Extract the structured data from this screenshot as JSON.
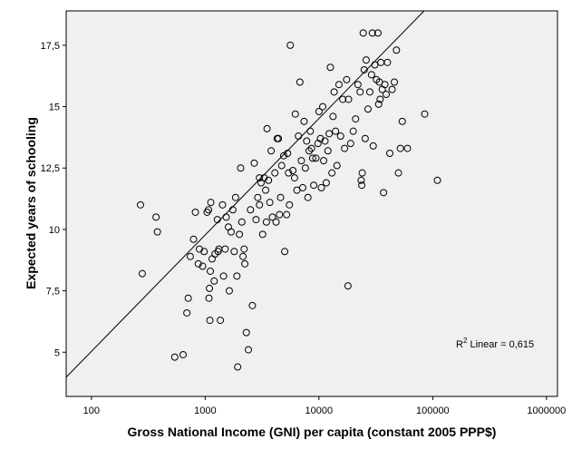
{
  "chart_data": {
    "type": "scatter",
    "xlabel": "Gross National Income (GNI) per capita (constant 2005 PPP$)",
    "ylabel": "Expected years of schooling",
    "x_scale": "log",
    "xlim": [
      60,
      1250000
    ],
    "ylim": [
      3.2,
      18.9
    ],
    "x_ticks": [
      100,
      1000,
      10000,
      100000,
      1000000
    ],
    "x_tick_labels": [
      "100",
      "1000",
      "10000",
      "100000",
      "1000000"
    ],
    "y_ticks": [
      5,
      7.5,
      10,
      12.5,
      15,
      17.5
    ],
    "y_tick_labels": [
      "5",
      "7,5",
      "10",
      "12,5",
      "15",
      "17,5"
    ],
    "grid": false,
    "background": "#f0f0f0",
    "fit_line": {
      "label_prefix": "R",
      "label_sup": "2",
      "label_suffix": " Linear = 0,615",
      "points": [
        [
          60,
          3.98
        ],
        [
          84000,
          18.9
        ]
      ]
    },
    "points": [
      [
        270,
        11.0
      ],
      [
        280,
        8.2
      ],
      [
        370,
        10.5
      ],
      [
        380,
        9.9
      ],
      [
        540,
        4.8
      ],
      [
        640,
        4.9
      ],
      [
        690,
        6.6
      ],
      [
        710,
        7.2
      ],
      [
        740,
        8.9
      ],
      [
        790,
        9.6
      ],
      [
        820,
        10.7
      ],
      [
        870,
        8.6
      ],
      [
        890,
        9.2
      ],
      [
        950,
        8.5
      ],
      [
        980,
        9.1
      ],
      [
        1040,
        10.7
      ],
      [
        1070,
        10.8
      ],
      [
        1080,
        7.2
      ],
      [
        1090,
        7.6
      ],
      [
        1100,
        6.3
      ],
      [
        1110,
        8.3
      ],
      [
        1120,
        11.1
      ],
      [
        1150,
        8.8
      ],
      [
        1200,
        7.9
      ],
      [
        1220,
        9.0
      ],
      [
        1280,
        10.4
      ],
      [
        1300,
        9.1
      ],
      [
        1320,
        9.2
      ],
      [
        1360,
        6.3
      ],
      [
        1420,
        11.0
      ],
      [
        1450,
        8.1
      ],
      [
        1500,
        9.2
      ],
      [
        1530,
        10.5
      ],
      [
        1600,
        10.1
      ],
      [
        1630,
        7.5
      ],
      [
        1690,
        9.9
      ],
      [
        1750,
        10.8
      ],
      [
        1800,
        9.1
      ],
      [
        1850,
        11.3
      ],
      [
        1900,
        8.1
      ],
      [
        1930,
        4.4
      ],
      [
        2000,
        9.8
      ],
      [
        2050,
        12.5
      ],
      [
        2100,
        10.3
      ],
      [
        2150,
        8.9
      ],
      [
        2200,
        9.2
      ],
      [
        2230,
        8.6
      ],
      [
        2300,
        5.8
      ],
      [
        2400,
        5.1
      ],
      [
        2500,
        10.8
      ],
      [
        2600,
        6.9
      ],
      [
        2700,
        12.7
      ],
      [
        2800,
        10.4
      ],
      [
        2900,
        11.3
      ],
      [
        3000,
        12.1
      ],
      [
        3000,
        11.0
      ],
      [
        3100,
        11.9
      ],
      [
        3200,
        9.8
      ],
      [
        3300,
        12.1
      ],
      [
        3400,
        11.6
      ],
      [
        3450,
        10.3
      ],
      [
        3500,
        14.1
      ],
      [
        3600,
        12.0
      ],
      [
        3700,
        11.1
      ],
      [
        3800,
        13.2
      ],
      [
        3900,
        10.5
      ],
      [
        4100,
        12.3
      ],
      [
        4200,
        10.3
      ],
      [
        4300,
        13.7
      ],
      [
        4400,
        13.7
      ],
      [
        4500,
        10.6
      ],
      [
        4600,
        11.3
      ],
      [
        4700,
        12.6
      ],
      [
        4900,
        13.0
      ],
      [
        5000,
        9.1
      ],
      [
        5200,
        10.6
      ],
      [
        5300,
        13.1
      ],
      [
        5400,
        12.3
      ],
      [
        5500,
        11.0
      ],
      [
        5600,
        17.5
      ],
      [
        5900,
        12.4
      ],
      [
        6100,
        12.1
      ],
      [
        6200,
        14.7
      ],
      [
        6400,
        11.6
      ],
      [
        6600,
        13.8
      ],
      [
        6800,
        16.0
      ],
      [
        7000,
        12.8
      ],
      [
        7200,
        11.7
      ],
      [
        7400,
        14.4
      ],
      [
        7600,
        12.5
      ],
      [
        7800,
        13.6
      ],
      [
        8000,
        11.3
      ],
      [
        8200,
        13.2
      ],
      [
        8400,
        14.0
      ],
      [
        8600,
        13.3
      ],
      [
        8800,
        12.9
      ],
      [
        9000,
        11.8
      ],
      [
        9400,
        12.9
      ],
      [
        9800,
        13.5
      ],
      [
        10000,
        14.8
      ],
      [
        10300,
        13.7
      ],
      [
        10500,
        11.7
      ],
      [
        10800,
        15.0
      ],
      [
        11000,
        12.8
      ],
      [
        11300,
        13.6
      ],
      [
        11600,
        11.9
      ],
      [
        12000,
        13.2
      ],
      [
        12300,
        13.9
      ],
      [
        12600,
        16.6
      ],
      [
        13000,
        12.3
      ],
      [
        13300,
        14.6
      ],
      [
        13600,
        15.6
      ],
      [
        14000,
        14.0
      ],
      [
        14400,
        12.6
      ],
      [
        15000,
        15.9
      ],
      [
        15500,
        13.8
      ],
      [
        16200,
        15.3
      ],
      [
        16800,
        13.3
      ],
      [
        17500,
        16.1
      ],
      [
        18000,
        7.7
      ],
      [
        18200,
        15.3
      ],
      [
        19000,
        13.5
      ],
      [
        20000,
        14.0
      ],
      [
        21000,
        14.5
      ],
      [
        22000,
        15.9
      ],
      [
        23000,
        15.6
      ],
      [
        23500,
        12.0
      ],
      [
        23800,
        11.8
      ],
      [
        24000,
        12.3
      ],
      [
        24500,
        18.0
      ],
      [
        25000,
        16.5
      ],
      [
        25500,
        13.7
      ],
      [
        26000,
        16.9
      ],
      [
        27000,
        14.9
      ],
      [
        28000,
        15.6
      ],
      [
        29000,
        16.3
      ],
      [
        29500,
        18.0
      ],
      [
        30000,
        13.4
      ],
      [
        31000,
        16.7
      ],
      [
        32000,
        16.1
      ],
      [
        33000,
        18.0
      ],
      [
        33500,
        15.1
      ],
      [
        34000,
        16.0
      ],
      [
        34500,
        15.3
      ],
      [
        35000,
        16.8
      ],
      [
        36000,
        15.7
      ],
      [
        37000,
        11.5
      ],
      [
        38000,
        15.9
      ],
      [
        39000,
        15.5
      ],
      [
        40000,
        16.8
      ],
      [
        42000,
        13.1
      ],
      [
        44000,
        15.7
      ],
      [
        46000,
        16.0
      ],
      [
        48000,
        17.3
      ],
      [
        50000,
        12.3
      ],
      [
        52000,
        13.3
      ],
      [
        54000,
        14.4
      ],
      [
        60000,
        13.3
      ],
      [
        85000,
        14.7
      ],
      [
        110000,
        12.0
      ]
    ]
  }
}
